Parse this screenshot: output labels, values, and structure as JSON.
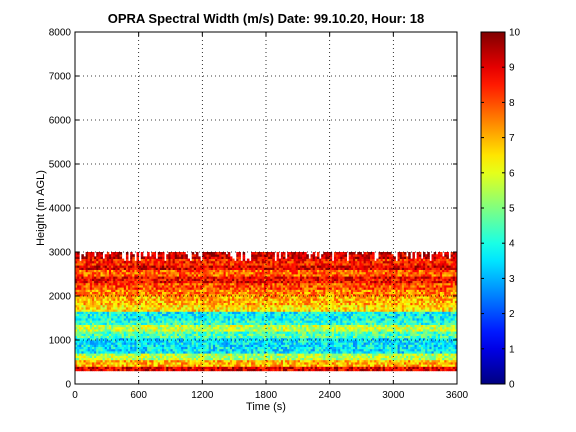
{
  "chart_data": {
    "type": "heatmap",
    "title": "OPRA Spectral Width (m/s)  Date: 99.10.20, Hour: 18",
    "xlabel": "Time (s)",
    "ylabel": "Height (m AGL)",
    "xlim": [
      0,
      3600
    ],
    "ylim": [
      0,
      8000
    ],
    "x_ticks": [
      0,
      600,
      1200,
      1800,
      2400,
      3000,
      3600
    ],
    "y_ticks": [
      0,
      1000,
      2000,
      3000,
      4000,
      5000,
      6000,
      7000,
      8000
    ],
    "grid": true,
    "colorbar": {
      "colormap": "jet",
      "clim": [
        0,
        10
      ],
      "ticks": [
        0,
        1,
        2,
        3,
        4,
        5,
        6,
        7,
        8,
        9,
        10
      ]
    },
    "data_extent": {
      "height_min": 300,
      "height_max": 3000,
      "time_min": 0,
      "time_max": 3600
    },
    "height_profile": [
      {
        "from": 300,
        "to": 400,
        "value": 9.0
      },
      {
        "from": 400,
        "to": 550,
        "value": 7.0
      },
      {
        "from": 550,
        "to": 700,
        "value": 5.5
      },
      {
        "from": 700,
        "to": 1050,
        "value": 3.6
      },
      {
        "from": 1050,
        "to": 1200,
        "value": 4.5
      },
      {
        "from": 1200,
        "to": 1350,
        "value": 5.6
      },
      {
        "from": 1350,
        "to": 1450,
        "value": 4.2
      },
      {
        "from": 1450,
        "to": 1650,
        "value": 3.8
      },
      {
        "from": 1650,
        "to": 1800,
        "value": 6.5
      },
      {
        "from": 1800,
        "to": 2000,
        "value": 7.0
      },
      {
        "from": 2000,
        "to": 2150,
        "value": 7.5
      },
      {
        "from": 2150,
        "to": 2300,
        "value": 8.0
      },
      {
        "from": 2300,
        "to": 2450,
        "value": 8.8
      },
      {
        "from": 2450,
        "to": 2600,
        "value": 7.8
      },
      {
        "from": 2600,
        "to": 2700,
        "value": 9.0
      },
      {
        "from": 2700,
        "to": 2850,
        "value": 8.5
      },
      {
        "from": 2850,
        "to": 3000,
        "value": 9.2
      }
    ]
  }
}
